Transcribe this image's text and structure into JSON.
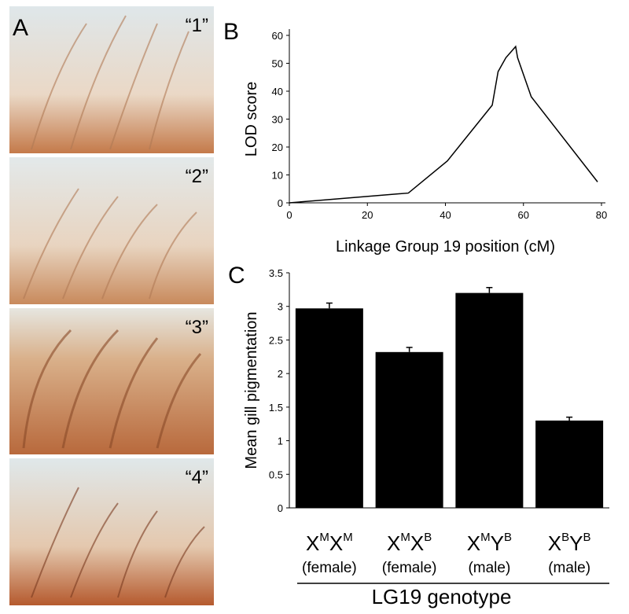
{
  "panel_a": {
    "label": "A",
    "images": [
      "“1”",
      "“2”",
      "“3”",
      "“4”"
    ]
  },
  "chart_data": [
    {
      "type": "line",
      "panel_label": "B",
      "x": [
        0,
        30.5,
        40.5,
        52,
        53.5,
        55.5,
        58,
        58.5,
        62,
        79
      ],
      "y": [
        0,
        3.5,
        15,
        35,
        47,
        52,
        56,
        52,
        38,
        7.5
      ],
      "xlim": [
        0,
        80
      ],
      "xticks": [
        0,
        20,
        40,
        60,
        80
      ],
      "ylim": [
        0,
        60
      ],
      "yticks": [
        0,
        10,
        20,
        30,
        40,
        50,
        60
      ],
      "xlabel": "Linkage Group 19 position (cM)",
      "ylabel": "LOD score",
      "color": "#000000",
      "grid": false
    },
    {
      "type": "bar",
      "panel_label": "C",
      "categories": [
        {
          "genotype": [
            [
              "X",
              "M"
            ],
            [
              "X",
              "M"
            ]
          ],
          "sex": "(female)"
        },
        {
          "genotype": [
            [
              "X",
              "M"
            ],
            [
              "X",
              "B"
            ]
          ],
          "sex": "(female)"
        },
        {
          "genotype": [
            [
              "X",
              "M"
            ],
            [
              "Y",
              "B"
            ]
          ],
          "sex": "(male)"
        },
        {
          "genotype": [
            [
              "X",
              "B"
            ],
            [
              "Y",
              "B"
            ]
          ],
          "sex": "(male)"
        }
      ],
      "values": [
        2.97,
        2.32,
        3.2,
        1.3
      ],
      "errors": [
        0.08,
        0.07,
        0.08,
        0.05
      ],
      "ylim": [
        0,
        3.5
      ],
      "yticks": [
        0,
        0.5,
        1,
        1.5,
        2,
        2.5,
        3,
        3.5
      ],
      "xlabel": "LG19 genotype",
      "ylabel": "Mean gill pigmentation",
      "color": "#000000",
      "grid": false
    }
  ]
}
